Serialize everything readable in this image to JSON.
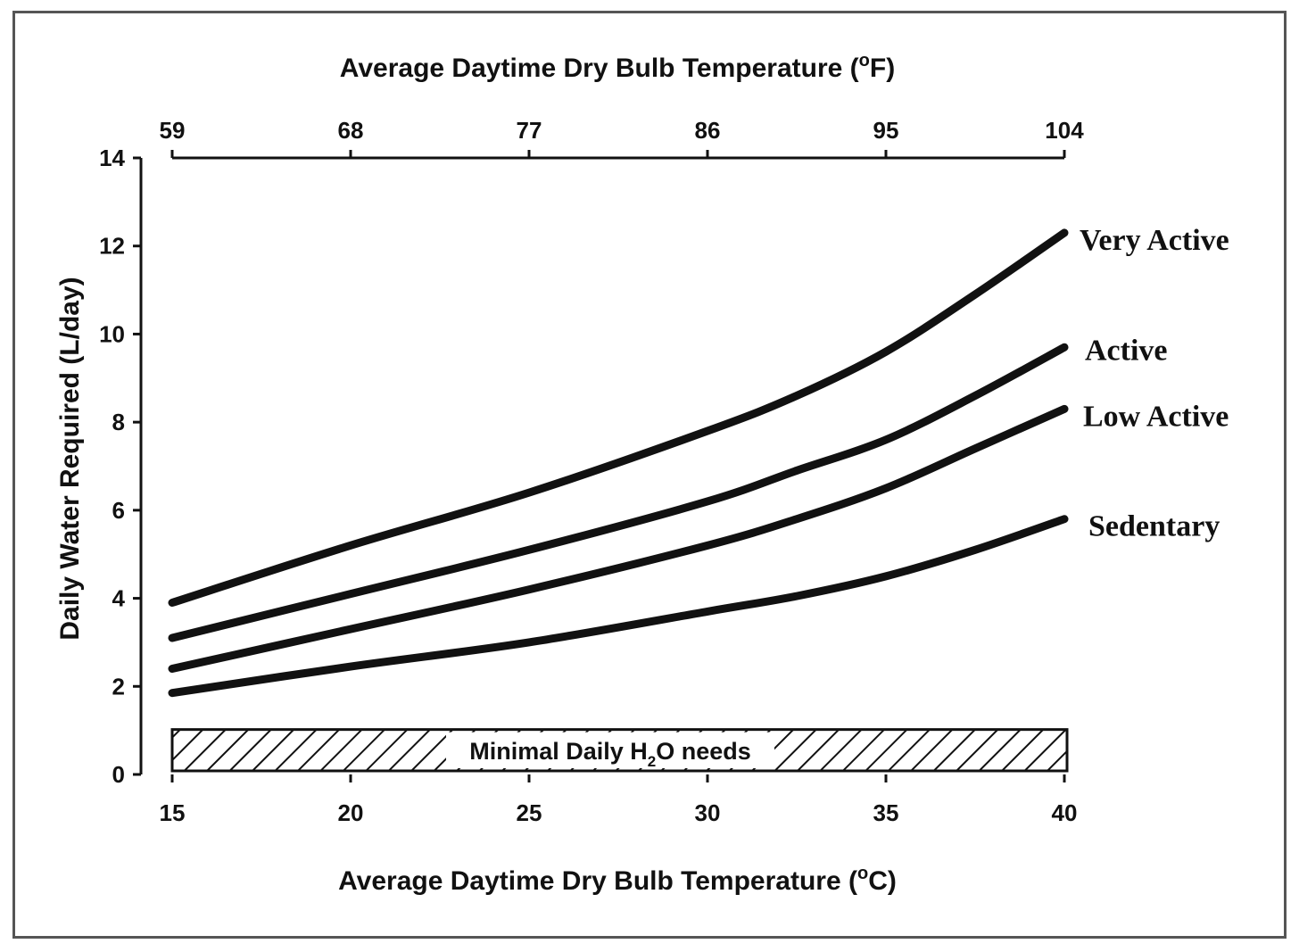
{
  "chart_data": {
    "type": "line",
    "x_bottom": {
      "label_prefix": "Average Daytime Dry Bulb Temperature (",
      "label_unit": "C",
      "label_suffix": ")",
      "degree_mark": "o",
      "ticks": [
        15,
        20,
        25,
        30,
        35,
        40
      ],
      "range": [
        15,
        40
      ]
    },
    "x_top": {
      "label_prefix": "Average Daytime Dry Bulb Temperature (",
      "label_unit": "F",
      "label_suffix": ")",
      "degree_mark": "o",
      "ticks": [
        59,
        68,
        77,
        86,
        95,
        104
      ],
      "range": [
        59,
        104
      ]
    },
    "y": {
      "label": "Daily Water Required (L/day)",
      "ticks": [
        0,
        2,
        4,
        6,
        8,
        10,
        12,
        14
      ],
      "range": [
        0,
        14
      ]
    },
    "x": [
      15,
      20,
      25,
      30,
      32.5,
      35,
      37.5,
      40
    ],
    "series": [
      {
        "name": "Very Active",
        "values": [
          3.9,
          5.2,
          6.4,
          7.8,
          8.6,
          9.6,
          10.9,
          12.3
        ]
      },
      {
        "name": "Active",
        "values": [
          3.1,
          4.1,
          5.1,
          6.2,
          6.9,
          7.6,
          8.6,
          9.7
        ]
      },
      {
        "name": "Low Active",
        "values": [
          2.4,
          3.3,
          4.2,
          5.2,
          5.8,
          6.5,
          7.4,
          8.3
        ]
      },
      {
        "name": "Sedentary",
        "values": [
          1.85,
          2.45,
          3.0,
          3.7,
          4.05,
          4.5,
          5.1,
          5.8
        ]
      }
    ],
    "band": {
      "label_prefix": "Minimal Daily H",
      "label_sub": "2",
      "label_suffix": "O needs",
      "y_range": [
        0,
        1.0
      ],
      "x_range": [
        15,
        40
      ]
    },
    "grid": false,
    "line_color": "#111111"
  }
}
